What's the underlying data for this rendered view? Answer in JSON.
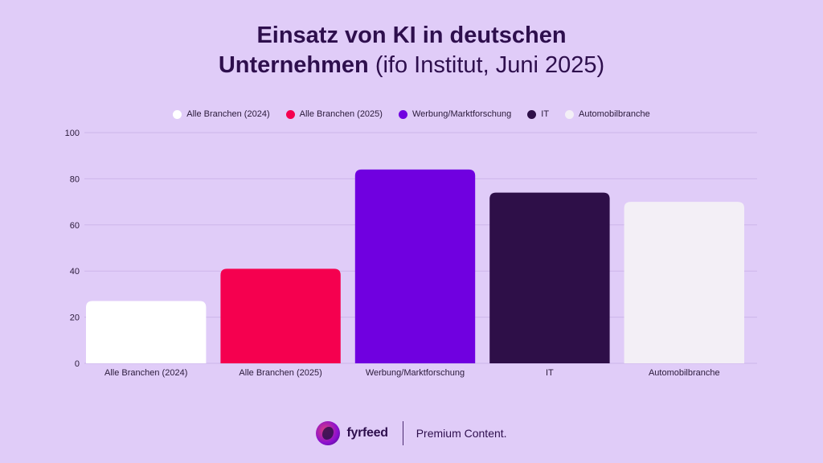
{
  "title": {
    "line1": "Einsatz von KI in deutschen",
    "line2_bold": "Unternehmen",
    "line2_normal": " (ifo Institut, Juni 2025)"
  },
  "footer": {
    "brand": "fyrfeed",
    "tagline": "Premium Content."
  },
  "colors": {
    "background": "#e0ccf8",
    "gridline": "#cdb6ea",
    "text": "#2a1a3a"
  },
  "chart_data": {
    "type": "bar",
    "title": "Einsatz von KI in deutschen Unternehmen (ifo Institut, Juni 2025)",
    "categories": [
      "Alle Branchen (2024)",
      "Alle Branchen (2025)",
      "Werbung/Marktforschung",
      "IT",
      "Automobilbranche"
    ],
    "values": [
      27,
      41,
      84,
      74,
      70
    ],
    "bar_colors": [
      "#ffffff",
      "#f5004f",
      "#7000e0",
      "#2e0f48",
      "#f3eff6"
    ],
    "legend": [
      {
        "label": "Alle Branchen (2024)",
        "color": "#ffffff"
      },
      {
        "label": "Alle Branchen (2025)",
        "color": "#f5004f"
      },
      {
        "label": "Werbung/Marktforschung",
        "color": "#7000e0"
      },
      {
        "label": "IT",
        "color": "#2e0f48"
      },
      {
        "label": "Automobilbranche",
        "color": "#f3eff6"
      }
    ],
    "yticks": [
      "0",
      "20",
      "40",
      "60",
      "80",
      "100"
    ],
    "ylim": [
      0,
      100
    ],
    "xlabel": "",
    "ylabel": "",
    "grid": true,
    "legend_position": "top-center"
  }
}
